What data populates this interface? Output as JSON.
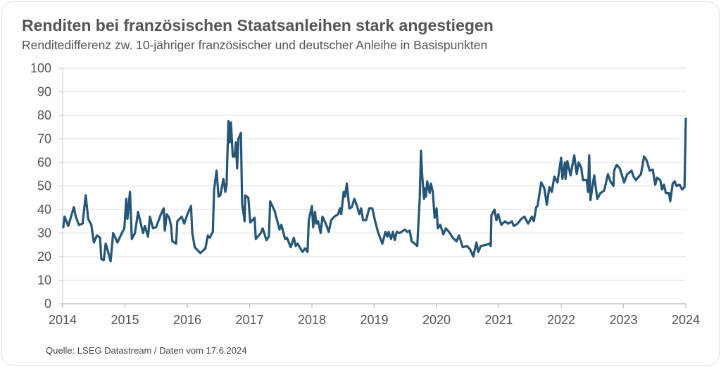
{
  "title": "Renditen bei französischen Staatsanleihen stark angestiegen",
  "subtitle": "Renditedifferenz zw. 10-jähriger französischer und deutscher Anleihe in Basispunkten",
  "source": "Quelle: LSEG Datastream / Daten vom 17.6.2024",
  "colors": {
    "line": "#255577",
    "grid": "#e3e3e3",
    "text": "#555555"
  },
  "chart_data": {
    "type": "line",
    "title": "Renditen bei französischen Staatsanleihen stark angestiegen",
    "ylim": [
      0,
      100
    ],
    "xlim": [
      2014,
      2024
    ],
    "grid": true,
    "yticks": [
      "0",
      "10",
      "20",
      "30",
      "40",
      "50",
      "60",
      "70",
      "80",
      "90",
      "100"
    ],
    "xticks": [
      "2014",
      "2015",
      "2016",
      "2017",
      "2018",
      "2019",
      "2020",
      "2021",
      "2022",
      "2023",
      "2024"
    ],
    "series": [
      {
        "x": [
          2014.01,
          2014.03,
          2014.09,
          2014.18,
          2014.21,
          2014.26,
          2014.32,
          2014.37,
          2014.41,
          2014.46,
          2014.5,
          2014.55,
          2014.6,
          2014.62,
          2014.66,
          2014.69,
          2014.72,
          2014.77,
          2014.81,
          2014.88,
          2014.94,
          2014.99,
          2015.02,
          2015.04,
          2015.08,
          2015.11,
          2015.16,
          2015.21,
          2015.25,
          2015.29,
          2015.32,
          2015.37,
          2015.4,
          2015.45,
          2015.5,
          2015.57,
          2015.62,
          2015.64,
          2015.67,
          2015.71,
          2015.74,
          2015.76,
          2015.82,
          2015.84,
          2015.91,
          2015.95,
          2016.01,
          2016.06,
          2016.08,
          2016.12,
          2016.21,
          2016.29,
          2016.33,
          2016.36,
          2016.41,
          2016.43,
          2016.47,
          2016.5,
          2016.53,
          2016.58,
          2016.61,
          2016.63,
          2016.66,
          2016.68,
          2016.7,
          2016.73,
          2016.76,
          2016.78,
          2016.8,
          2016.82,
          2016.86,
          2016.88,
          2016.92,
          2016.93,
          2016.98,
          2017.01,
          2017.08,
          2017.1,
          2017.18,
          2017.21,
          2017.27,
          2017.31,
          2017.33,
          2017.4,
          2017.48,
          2017.51,
          2017.57,
          2017.6,
          2017.66,
          2017.71,
          2017.74,
          2017.77,
          2017.85,
          2017.89,
          2017.93,
          2017.95,
          2018.0,
          2018.02,
          2018.05,
          2018.07,
          2018.1,
          2018.14,
          2018.17,
          2018.23,
          2018.27,
          2018.31,
          2018.36,
          2018.42,
          2018.45,
          2018.47,
          2018.51,
          2018.53,
          2018.56,
          2018.6,
          2018.64,
          2018.68,
          2018.73,
          2018.76,
          2018.79,
          2018.82,
          2018.87,
          2018.92,
          2018.97,
          2019.01,
          2019.06,
          2019.13,
          2019.18,
          2019.21,
          2019.23,
          2019.27,
          2019.3,
          2019.33,
          2019.36,
          2019.41,
          2019.49,
          2019.53,
          2019.57,
          2019.6,
          2019.65,
          2019.69,
          2019.73,
          2019.75,
          2019.77,
          2019.8,
          2019.81,
          2019.83,
          2019.85,
          2019.89,
          2019.91,
          2019.94,
          2019.97,
          2020.0,
          2020.02,
          2020.06,
          2020.11,
          2020.15,
          2020.2,
          2020.26,
          2020.32,
          2020.36,
          2020.42,
          2020.49,
          2020.54,
          2020.59,
          2020.64,
          2020.67,
          2020.71,
          2020.79,
          2020.85,
          2020.87,
          2020.88,
          2020.93,
          2020.96,
          2020.99,
          2021.04,
          2021.1,
          2021.15,
          2021.21,
          2021.24,
          2021.3,
          2021.36,
          2021.41,
          2021.47,
          2021.53,
          2021.56,
          2021.6,
          2021.62,
          2021.68,
          2021.73,
          2021.77,
          2021.81,
          2021.85,
          2021.89,
          2021.94,
          2022.0,
          2022.02,
          2022.06,
          2022.07,
          2022.1,
          2022.15,
          2022.21,
          2022.25,
          2022.28,
          2022.32,
          2022.35,
          2022.41,
          2022.43,
          2022.45,
          2022.47,
          2022.53,
          2022.58,
          2022.63,
          2022.69,
          2022.75,
          2022.79,
          2022.84,
          2022.85,
          2022.89,
          2022.94,
          2023.01,
          2023.06,
          2023.13,
          2023.16,
          2023.2,
          2023.28,
          2023.33,
          2023.37,
          2023.42,
          2023.47,
          2023.51,
          2023.54,
          2023.59,
          2023.62,
          2023.65,
          2023.68,
          2023.73,
          2023.75,
          2023.79,
          2023.82,
          2023.85,
          2023.9,
          2023.94,
          2023.98,
          2024.0
        ],
        "y": [
          32.5,
          37,
          33,
          41,
          37,
          33.5,
          34,
          46,
          36,
          33.5,
          26,
          29,
          28,
          19,
          18.5,
          25.5,
          23,
          18,
          30,
          26,
          29.5,
          32,
          44.5,
          36,
          47.5,
          27.5,
          30,
          39,
          34.5,
          30,
          33,
          28.5,
          37,
          32,
          32.5,
          37.5,
          40.5,
          31,
          38,
          36.5,
          33,
          26.5,
          25.5,
          35,
          37,
          34,
          38.5,
          41.5,
          30,
          24,
          21.5,
          23.5,
          29,
          28,
          30.5,
          48.5,
          56.5,
          45.5,
          46,
          53,
          47.5,
          50.5,
          77.5,
          68.5,
          77,
          62.5,
          62.5,
          68.5,
          57.5,
          70,
          72.5,
          42.5,
          35,
          46,
          45,
          34.5,
          36.5,
          27.5,
          30,
          32,
          27,
          28.5,
          43.5,
          39.5,
          31.5,
          33.5,
          27.5,
          28,
          24,
          28,
          24.5,
          25.5,
          22,
          23.5,
          22,
          35.5,
          41.5,
          32.5,
          39,
          34,
          35,
          30,
          37,
          33.5,
          30.5,
          35.5,
          37,
          38,
          40.5,
          38,
          47.5,
          45.5,
          51,
          40.5,
          41,
          44.5,
          41,
          38,
          40.5,
          35.5,
          35.5,
          40.5,
          40.5,
          35.5,
          30.5,
          25.5,
          30.5,
          28.5,
          30.5,
          27.5,
          30.5,
          27,
          30.5,
          30,
          31.5,
          30.5,
          31,
          26.5,
          25.5,
          24.5,
          44.5,
          65,
          54.5,
          44.5,
          49,
          45.5,
          52,
          47,
          51,
          47.5,
          36.5,
          40.5,
          32,
          33.5,
          29.5,
          32,
          30.5,
          28,
          26.5,
          29,
          24,
          24.5,
          23,
          20,
          26,
          22,
          24.5,
          25,
          25.5,
          24.5,
          37.5,
          40,
          35.5,
          38,
          33.5,
          35,
          34,
          35,
          33,
          34,
          36,
          37,
          34,
          37,
          35,
          41,
          41.5,
          51.5,
          49,
          42,
          49.5,
          47.5,
          54,
          51.5,
          62,
          53,
          60,
          53,
          60.5,
          54.5,
          63,
          55,
          60,
          58,
          52.5,
          52.5,
          47.5,
          63,
          44,
          54.5,
          44.5,
          47,
          48,
          55,
          52,
          50,
          56.5,
          59,
          57.5,
          51.5,
          55,
          56.5,
          54,
          52.5,
          55,
          62.5,
          61,
          56.5,
          57,
          50.5,
          53.5,
          52.5,
          48.5,
          50.5,
          47,
          47,
          43.5,
          51,
          52,
          50,
          50.5,
          48.5,
          49.5,
          78.5
        ]
      }
    ]
  }
}
